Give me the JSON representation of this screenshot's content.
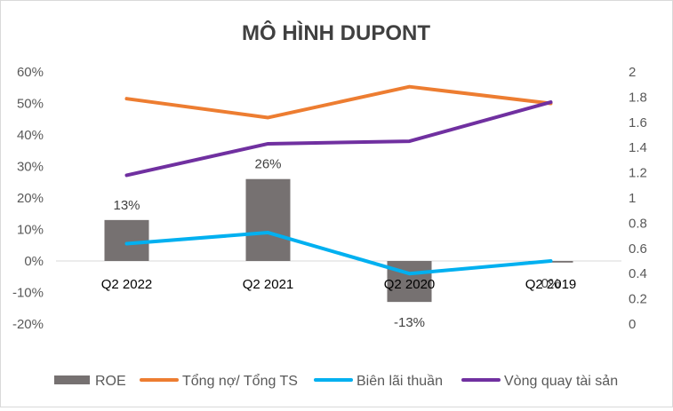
{
  "chart_data": {
    "type": "bar",
    "title": "MÔ HÌNH DUPONT",
    "categories": [
      "Q2 2022",
      "Q2 2021",
      "Q2 2020",
      "Q2 2019"
    ],
    "y_left": {
      "ticks": [
        "60%",
        "50%",
        "40%",
        "30%",
        "20%",
        "10%",
        "0%",
        "-10%",
        "-20%"
      ],
      "min": -0.2,
      "max": 0.6
    },
    "y_right": {
      "ticks": [
        "2",
        "1.8",
        "1.6",
        "1.4",
        "1.2",
        "1",
        "0.8",
        "0.6",
        "0.4",
        "0.2",
        "0"
      ],
      "min": 0,
      "max": 2
    },
    "bar_series": {
      "name": "ROE",
      "axis": "left",
      "color": "#767171",
      "values": [
        0.13,
        0.26,
        -0.13,
        -0.005
      ],
      "labels": [
        "13%",
        "26%",
        "-13%",
        "0%"
      ]
    },
    "line_series": [
      {
        "name": "Tổng nợ/ Tổng TS",
        "axis": "left",
        "color": "#ED7D31",
        "values": [
          0.515,
          0.455,
          0.553,
          0.5
        ]
      },
      {
        "name": "Biên lãi thuần",
        "axis": "left",
        "color": "#00B0F0",
        "values": [
          0.055,
          0.09,
          -0.04,
          0.0
        ]
      },
      {
        "name": "Vòng quay tài sản",
        "axis": "right",
        "color": "#7030A0",
        "values": [
          1.18,
          1.43,
          1.45,
          1.76
        ]
      }
    ],
    "legend_position": "bottom",
    "grid": false
  }
}
